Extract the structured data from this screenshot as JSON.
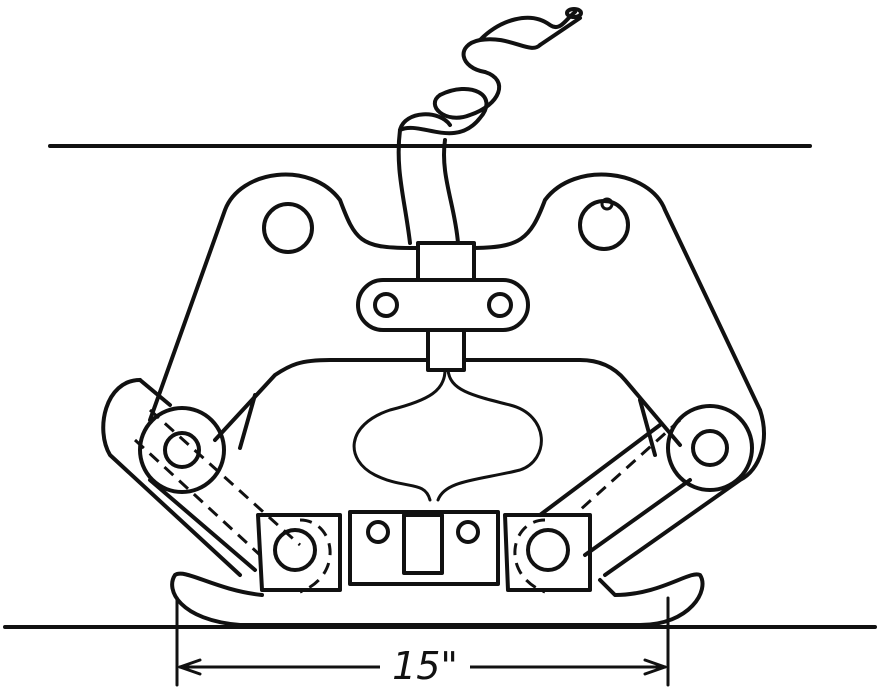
{
  "figure": {
    "dimension": {
      "label": "15\""
    }
  }
}
